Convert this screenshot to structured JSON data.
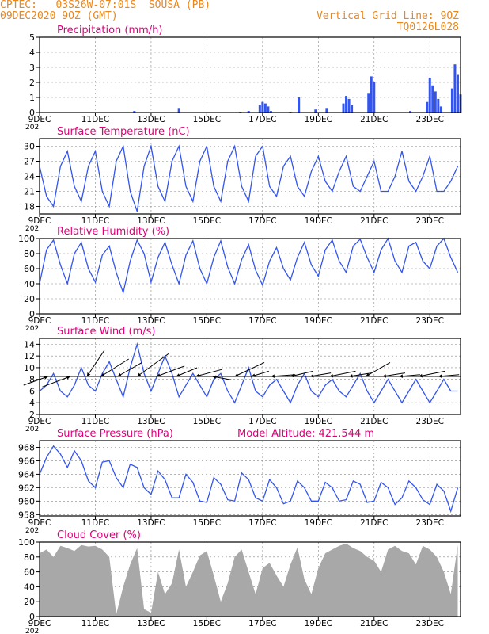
{
  "header": {
    "line1": "CPTEC:   03S26W-07:01S  SOUSA (PB)",
    "line2": "09DEC2020 9OZ (GMT)",
    "grid_note": "Vertical Grid Line: 9OZ",
    "code": "TQ0126L028"
  },
  "colors": {
    "header": "#e8871e",
    "title": "#e0007a",
    "line": "#3355ee",
    "bar": "#3355ee",
    "cloud": "#a8a8a8",
    "wind": "#000000"
  },
  "x_axis": {
    "labels": [
      "9DEC",
      "11DEC",
      "13DEC",
      "15DEC",
      "17DEC",
      "19DEC",
      "21DEC",
      "23DEC"
    ],
    "year_fragment": "202",
    "start_day": 9,
    "end_day": 24.1
  },
  "chart_data": [
    {
      "id": "precip",
      "type": "bar",
      "title": "Precipitation (mm/h)",
      "ylim": [
        0,
        5
      ],
      "yticks": [
        "0",
        "1",
        "2",
        "3",
        "4",
        "5"
      ],
      "x": [
        12.4,
        14.0,
        16.2,
        16.5,
        16.9,
        17.0,
        17.1,
        17.2,
        17.3,
        18.0,
        18.3,
        18.9,
        19.3,
        19.9,
        20.0,
        20.1,
        20.2,
        20.8,
        20.9,
        21.0,
        22.3,
        22.9,
        23.0,
        23.1,
        23.2,
        23.3,
        23.4,
        23.8,
        23.9,
        24.0,
        24.1
      ],
      "values": [
        0.1,
        0.3,
        0.05,
        0.1,
        0.5,
        0.7,
        0.6,
        0.4,
        0.1,
        0.05,
        1.0,
        0.2,
        0.3,
        0.6,
        1.1,
        0.9,
        0.5,
        1.3,
        2.4,
        2.0,
        0.1,
        0.7,
        2.3,
        1.8,
        1.4,
        0.9,
        0.4,
        1.6,
        3.2,
        2.5,
        1.2
      ]
    },
    {
      "id": "temp",
      "type": "line",
      "title": "Surface Temperature (nC)",
      "ylim": [
        16.5,
        31.5
      ],
      "ytick_values": [
        18,
        21,
        24,
        27,
        30
      ],
      "yticks": [
        "18",
        "21",
        "24",
        "27",
        "30"
      ],
      "x": [
        9.0,
        9.25,
        9.5,
        9.75,
        10.0,
        10.25,
        10.5,
        10.75,
        11.0,
        11.25,
        11.5,
        11.75,
        12.0,
        12.25,
        12.5,
        12.75,
        13.0,
        13.25,
        13.5,
        13.75,
        14.0,
        14.25,
        14.5,
        14.75,
        15.0,
        15.25,
        15.5,
        15.75,
        16.0,
        16.25,
        16.5,
        16.75,
        17.0,
        17.25,
        17.5,
        17.75,
        18.0,
        18.25,
        18.5,
        18.75,
        19.0,
        19.25,
        19.5,
        19.75,
        20.0,
        20.25,
        20.5,
        20.75,
        21.0,
        21.25,
        21.5,
        21.75,
        22.0,
        22.25,
        22.5,
        22.75,
        23.0,
        23.25,
        23.5,
        23.75,
        24.0
      ],
      "values": [
        26,
        20,
        18,
        26,
        29,
        22,
        19,
        26,
        29,
        21,
        18,
        27,
        30,
        21,
        17,
        26,
        30,
        22,
        19,
        27,
        30,
        22,
        19,
        27,
        30,
        22,
        19,
        27,
        30,
        22,
        19,
        28,
        30,
        22,
        20,
        26,
        28,
        22,
        20,
        25,
        28,
        23,
        21,
        25,
        28,
        22,
        21,
        24,
        27,
        21,
        21,
        24,
        29,
        23,
        21,
        24,
        28,
        21,
        21,
        23,
        26
      ]
    },
    {
      "id": "rh",
      "type": "line",
      "title": "Relative Humidity (%)",
      "ylim": [
        0,
        100
      ],
      "ytick_values": [
        0,
        20,
        40,
        60,
        80,
        100
      ],
      "yticks": [
        "0",
        "20",
        "40",
        "60",
        "80",
        "100"
      ],
      "x": [
        9.0,
        9.25,
        9.5,
        9.75,
        10.0,
        10.25,
        10.5,
        10.75,
        11.0,
        11.25,
        11.5,
        11.75,
        12.0,
        12.25,
        12.5,
        12.75,
        13.0,
        13.25,
        13.5,
        13.75,
        14.0,
        14.25,
        14.5,
        14.75,
        15.0,
        15.25,
        15.5,
        15.75,
        16.0,
        16.25,
        16.5,
        16.75,
        17.0,
        17.25,
        17.5,
        17.75,
        18.0,
        18.25,
        18.5,
        18.75,
        19.0,
        19.25,
        19.5,
        19.75,
        20.0,
        20.25,
        20.5,
        20.75,
        21.0,
        21.25,
        21.5,
        21.75,
        22.0,
        22.25,
        22.5,
        22.75,
        23.0,
        23.25,
        23.5,
        23.75,
        24.0
      ],
      "values": [
        40,
        85,
        98,
        65,
        40,
        80,
        95,
        60,
        42,
        78,
        90,
        55,
        28,
        70,
        98,
        80,
        42,
        75,
        95,
        65,
        40,
        78,
        97,
        60,
        40,
        75,
        97,
        62,
        40,
        72,
        92,
        58,
        38,
        70,
        88,
        60,
        45,
        75,
        95,
        65,
        50,
        85,
        98,
        70,
        55,
        90,
        99,
        75,
        55,
        85,
        100,
        70,
        55,
        90,
        95,
        70,
        60,
        90,
        100,
        75,
        55
      ]
    },
    {
      "id": "wind",
      "type": "line",
      "title": "Surface Wind (m/s)",
      "ylim": [
        2,
        15
      ],
      "ytick_values": [
        2,
        4,
        6,
        8,
        10,
        12,
        14
      ],
      "yticks": [
        "2",
        "4",
        "6",
        "8",
        "10",
        "12",
        "14"
      ],
      "x": [
        9.0,
        9.25,
        9.5,
        9.75,
        10.0,
        10.25,
        10.5,
        10.75,
        11.0,
        11.25,
        11.5,
        11.75,
        12.0,
        12.25,
        12.5,
        12.75,
        13.0,
        13.25,
        13.5,
        13.75,
        14.0,
        14.25,
        14.5,
        14.75,
        15.0,
        15.25,
        15.5,
        15.75,
        16.0,
        16.25,
        16.5,
        16.75,
        17.0,
        17.25,
        17.5,
        17.75,
        18.0,
        18.25,
        18.5,
        18.75,
        19.0,
        19.25,
        19.5,
        19.75,
        20.0,
        20.25,
        20.5,
        20.75,
        21.0,
        21.25,
        21.5,
        21.75,
        22.0,
        22.25,
        22.5,
        22.75,
        23.0,
        23.25,
        23.5,
        23.75,
        24.0
      ],
      "values": [
        6,
        7,
        9,
        6,
        5,
        7,
        10,
        7,
        6,
        9,
        11,
        8,
        5,
        10,
        14,
        9,
        6,
        9,
        12,
        9,
        5,
        7,
        9,
        7,
        5,
        8,
        9,
        6,
        4,
        7,
        10,
        6,
        5,
        7,
        8,
        6,
        4,
        7,
        9,
        6,
        5,
        7,
        8,
        6,
        5,
        7,
        9,
        6,
        4,
        6,
        8,
        6,
        4,
        6,
        8,
        6,
        4,
        6,
        8,
        6,
        6
      ],
      "vectors": [
        {
          "x": 9.3,
          "u": -1.4,
          "v": -0.5
        },
        {
          "x": 10.1,
          "u": -1.6,
          "v": -0.6
        },
        {
          "x": 10.7,
          "u": 1.0,
          "v": 1.5
        },
        {
          "x": 11.2,
          "u": 1.6,
          "v": 1.0
        },
        {
          "x": 11.8,
          "u": 1.4,
          "v": 0.8
        },
        {
          "x": 12.5,
          "u": 1.8,
          "v": 1.3
        },
        {
          "x": 13.2,
          "u": 1.6,
          "v": 0.6
        },
        {
          "x": 13.9,
          "u": 1.2,
          "v": 0.5
        },
        {
          "x": 14.6,
          "u": 1.5,
          "v": 0.4
        },
        {
          "x": 15.2,
          "u": 1.1,
          "v": -0.2
        },
        {
          "x": 16.0,
          "u": 1.7,
          "v": 0.8
        },
        {
          "x": 16.6,
          "u": 1.0,
          "v": 0.3
        },
        {
          "x": 17.3,
          "u": 1.4,
          "v": 0.1
        },
        {
          "x": 18.0,
          "u": 1.3,
          "v": 0.3
        },
        {
          "x": 18.7,
          "u": 1.2,
          "v": 0.2
        },
        {
          "x": 19.4,
          "u": 1.5,
          "v": 0.3
        },
        {
          "x": 20.1,
          "u": 1.3,
          "v": 0.2
        },
        {
          "x": 20.7,
          "u": 1.4,
          "v": 0.8
        },
        {
          "x": 21.3,
          "u": 1.3,
          "v": 0.2
        },
        {
          "x": 21.9,
          "u": 1.2,
          "v": 0.1
        },
        {
          "x": 22.6,
          "u": 1.5,
          "v": 0.3
        },
        {
          "x": 23.3,
          "u": 1.2,
          "v": 0.1
        }
      ]
    },
    {
      "id": "pressure",
      "type": "line",
      "title": "Surface Pressure (hPa)",
      "extra_label": "Model Altitude: 421.544  m",
      "ylim": [
        957.8,
        969
      ],
      "ytick_values": [
        958,
        960,
        962,
        964,
        966,
        968
      ],
      "yticks": [
        "958",
        "960",
        "962",
        "964",
        "966",
        "968"
      ],
      "x": [
        9.0,
        9.25,
        9.5,
        9.75,
        10.0,
        10.25,
        10.5,
        10.75,
        11.0,
        11.25,
        11.5,
        11.75,
        12.0,
        12.25,
        12.5,
        12.75,
        13.0,
        13.25,
        13.5,
        13.75,
        14.0,
        14.25,
        14.5,
        14.75,
        15.0,
        15.25,
        15.5,
        15.75,
        16.0,
        16.25,
        16.5,
        16.75,
        17.0,
        17.25,
        17.5,
        17.75,
        18.0,
        18.25,
        18.5,
        18.75,
        19.0,
        19.25,
        19.5,
        19.75,
        20.0,
        20.25,
        20.5,
        20.75,
        21.0,
        21.25,
        21.5,
        21.75,
        22.0,
        22.25,
        22.5,
        22.75,
        23.0,
        23.25,
        23.5,
        23.75,
        24.0
      ],
      "values": [
        964,
        966.5,
        968.2,
        967,
        965,
        967.5,
        966,
        963,
        962,
        965.8,
        966,
        963.5,
        962,
        965.5,
        965,
        962,
        961,
        964.5,
        963.2,
        960.5,
        960.5,
        964,
        962.8,
        960,
        959.8,
        963.5,
        962.5,
        960.2,
        960,
        964.2,
        963.2,
        960.5,
        960,
        963.2,
        962,
        959.6,
        960,
        963,
        962,
        960,
        960,
        962.8,
        962,
        960,
        960.2,
        963,
        962.5,
        959.8,
        960,
        962.8,
        962,
        959.5,
        960.5,
        963,
        962,
        960.2,
        959.5,
        962.5,
        961.5,
        958.5,
        962
      ]
    },
    {
      "id": "cloud",
      "type": "area",
      "title": "Cloud Cover (%)",
      "ylim": [
        0,
        100
      ],
      "ytick_values": [
        0,
        20,
        40,
        60,
        80,
        100
      ],
      "yticks": [
        "0",
        "20",
        "40",
        "60",
        "80",
        "100"
      ],
      "x": [
        9.0,
        9.25,
        9.5,
        9.75,
        10.0,
        10.25,
        10.5,
        10.75,
        11.0,
        11.25,
        11.5,
        11.75,
        12.0,
        12.25,
        12.5,
        12.75,
        13.0,
        13.25,
        13.5,
        13.75,
        14.0,
        14.25,
        14.5,
        14.75,
        15.0,
        15.25,
        15.5,
        15.75,
        16.0,
        16.25,
        16.5,
        16.75,
        17.0,
        17.25,
        17.5,
        17.75,
        18.0,
        18.25,
        18.5,
        18.75,
        19.0,
        19.25,
        19.5,
        19.75,
        20.0,
        20.25,
        20.5,
        20.75,
        21.0,
        21.25,
        21.5,
        21.75,
        22.0,
        22.25,
        22.5,
        22.75,
        23.0,
        23.25,
        23.5,
        23.75,
        24.0
      ],
      "values": [
        85,
        90,
        80,
        95,
        92,
        88,
        96,
        94,
        95,
        90,
        80,
        3,
        40,
        70,
        92,
        10,
        5,
        60,
        30,
        45,
        90,
        40,
        60,
        82,
        88,
        55,
        20,
        45,
        80,
        90,
        60,
        30,
        65,
        72,
        55,
        40,
        70,
        93,
        50,
        30,
        65,
        85,
        90,
        95,
        98,
        92,
        88,
        80,
        75,
        60,
        90,
        95,
        88,
        85,
        70,
        95,
        90,
        80,
        60,
        30,
        96
      ]
    }
  ]
}
